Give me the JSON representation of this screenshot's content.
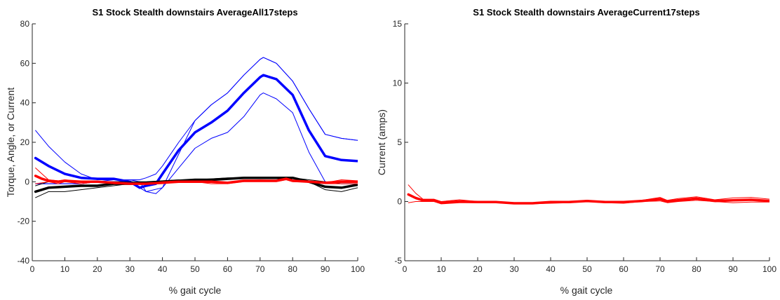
{
  "chart_data": [
    {
      "type": "line",
      "title": "S1 Stock Stealth downstairs  AverageAll17steps",
      "xlabel": "% gait cycle",
      "ylabel": "Torque, Angle, or Current",
      "xlim": [
        0,
        100
      ],
      "ylim": [
        -40,
        80
      ],
      "xticks": [
        0,
        10,
        20,
        30,
        40,
        50,
        60,
        70,
        80,
        90,
        100
      ],
      "yticks": [
        -40,
        -20,
        0,
        20,
        40,
        60,
        80
      ],
      "grid": false,
      "series": [
        {
          "color": "#0000ff",
          "width": 1,
          "x": [
            1,
            5,
            10,
            15,
            20,
            25,
            30,
            33,
            35,
            38,
            40,
            45,
            50,
            55,
            60,
            65,
            70,
            71,
            75,
            80,
            85,
            90,
            95,
            100
          ],
          "y": [
            26,
            18,
            10,
            4,
            1,
            1,
            1,
            0,
            -5,
            -6,
            -3,
            14,
            31,
            39,
            45,
            54,
            62,
            63,
            60,
            51,
            37,
            24,
            22,
            21
          ]
        },
        {
          "color": "#0000ff",
          "width": 1,
          "x": [
            1,
            5,
            10,
            15,
            20,
            25,
            30,
            33,
            35,
            38,
            40,
            45,
            50,
            55,
            60,
            65,
            70,
            71,
            75,
            80,
            85,
            90,
            95,
            100
          ],
          "y": [
            -1,
            -1,
            -1,
            -1,
            0,
            1,
            1,
            1,
            2,
            4,
            8,
            20,
            31,
            39,
            45,
            54,
            62,
            63,
            60,
            51,
            37,
            24,
            22,
            21
          ]
        },
        {
          "color": "#0000ff",
          "width": 1,
          "x": [
            1,
            5,
            10,
            15,
            20,
            25,
            30,
            35,
            40,
            45,
            50,
            55,
            60,
            65,
            70,
            71,
            75,
            80,
            85,
            90,
            95,
            100
          ],
          "y": [
            -1,
            -1,
            -1,
            -1,
            0,
            0,
            0,
            -5,
            -3,
            7,
            17,
            22,
            25,
            33,
            44,
            45,
            42,
            35,
            15,
            0,
            -1,
            -1
          ]
        },
        {
          "color": "#0000ff",
          "width": 3.5,
          "x": [
            1,
            5,
            10,
            15,
            20,
            25,
            30,
            33,
            35,
            38,
            40,
            45,
            50,
            55,
            60,
            65,
            70,
            71,
            75,
            80,
            85,
            90,
            95,
            100
          ],
          "y": [
            12,
            8,
            4,
            2,
            1.5,
            1.5,
            0,
            -3,
            -2,
            -1,
            4,
            16,
            25,
            30,
            36,
            45,
            53,
            54,
            52,
            44,
            26,
            13,
            11,
            10.5
          ]
        },
        {
          "color": "#000000",
          "width": 1,
          "x": [
            1,
            5,
            10,
            15,
            20,
            25,
            30,
            35,
            40,
            45,
            50,
            55,
            60,
            65,
            70,
            75,
            80,
            85,
            90,
            95,
            100
          ],
          "y": [
            -8,
            -5,
            -5,
            -4,
            -3,
            -2,
            -1,
            -1,
            0,
            0.5,
            1,
            1,
            1.5,
            2,
            2,
            2,
            2,
            0,
            -4,
            -5,
            -3
          ]
        },
        {
          "color": "#000000",
          "width": 1,
          "x": [
            1,
            5,
            10,
            15,
            20,
            25,
            30,
            35,
            40,
            45,
            50,
            55,
            60,
            65,
            70,
            75,
            80,
            85,
            90,
            95,
            100
          ],
          "y": [
            -2,
            0,
            0,
            0,
            0,
            0,
            0,
            0,
            0.5,
            1,
            1,
            1.5,
            2,
            2,
            2,
            2,
            2,
            1,
            0,
            -1,
            -1
          ]
        },
        {
          "color": "#000000",
          "width": 3.5,
          "x": [
            1,
            5,
            10,
            15,
            20,
            25,
            30,
            35,
            40,
            45,
            50,
            55,
            60,
            65,
            70,
            75,
            80,
            85,
            90,
            95,
            100
          ],
          "y": [
            -5,
            -3,
            -2.5,
            -2,
            -2,
            -1,
            -1,
            -0.5,
            0,
            0.5,
            1,
            1,
            1.5,
            2,
            2,
            2,
            2,
            0,
            -2.5,
            -3,
            -1.5
          ]
        },
        {
          "color": "#ff0000",
          "width": 1,
          "x": [
            1,
            3,
            5,
            8,
            10,
            15,
            20,
            25,
            30,
            35,
            40,
            45,
            50,
            55,
            60,
            65,
            70,
            75,
            78,
            80,
            85,
            90,
            95,
            100
          ],
          "y": [
            7,
            4,
            1,
            0.5,
            1,
            0,
            0,
            -1,
            -1,
            -1,
            0,
            0.5,
            0,
            0.5,
            -1,
            0.5,
            1,
            0.5,
            2,
            1,
            0,
            -0.5,
            1,
            0.5
          ]
        },
        {
          "color": "#ff0000",
          "width": 1,
          "x": [
            1,
            3,
            5,
            8,
            10,
            15,
            20,
            25,
            30,
            35,
            40,
            45,
            50,
            55,
            60,
            65,
            70,
            75,
            78,
            80,
            85,
            90,
            95,
            100
          ],
          "y": [
            -1,
            -0.5,
            0,
            -1,
            0,
            -1,
            0,
            -1,
            -1,
            -1,
            -1,
            0,
            0,
            -1,
            -1,
            0,
            0,
            0,
            1,
            0,
            0,
            -1,
            -1,
            -1
          ]
        },
        {
          "color": "#ff0000",
          "width": 3.5,
          "x": [
            1,
            3,
            5,
            8,
            10,
            15,
            20,
            25,
            30,
            35,
            40,
            45,
            50,
            55,
            60,
            65,
            70,
            75,
            78,
            80,
            85,
            90,
            95,
            100
          ],
          "y": [
            3,
            1.5,
            0.5,
            0,
            0.5,
            0,
            0,
            -0.5,
            -1,
            -1,
            -0.5,
            0,
            0,
            0,
            -0.5,
            0.5,
            0.5,
            0.5,
            1.5,
            0.5,
            0,
            -0.5,
            0,
            0
          ]
        }
      ]
    },
    {
      "type": "line",
      "title": "S1 Stock Stealth downstairs  AverageCurrent17steps",
      "xlabel": "% gait cycle",
      "ylabel": "Current (amps)",
      "xlim": [
        0,
        100
      ],
      "ylim": [
        -5,
        15
      ],
      "xticks": [
        0,
        10,
        20,
        30,
        40,
        50,
        60,
        70,
        80,
        90,
        100
      ],
      "yticks": [
        -5,
        0,
        5,
        10,
        15
      ],
      "grid": false,
      "series": [
        {
          "color": "#ff0000",
          "width": 1,
          "x": [
            1,
            3,
            5,
            8,
            10,
            15,
            20,
            25,
            30,
            35,
            40,
            45,
            50,
            55,
            60,
            65,
            70,
            72,
            75,
            80,
            85,
            90,
            95,
            100
          ],
          "y": [
            1.4,
            0.7,
            0.2,
            0.2,
            0,
            0.15,
            0,
            0,
            -0.1,
            -0.1,
            0,
            0,
            0.1,
            0,
            0,
            0.1,
            0.35,
            0.1,
            0.25,
            0.4,
            0.15,
            0.3,
            0.35,
            0.2
          ]
        },
        {
          "color": "#ff0000",
          "width": 1,
          "x": [
            1,
            3,
            5,
            8,
            10,
            15,
            20,
            25,
            30,
            35,
            40,
            45,
            50,
            55,
            60,
            65,
            70,
            72,
            75,
            80,
            85,
            90,
            95,
            100
          ],
          "y": [
            -0.1,
            0,
            0,
            0,
            -0.2,
            -0.1,
            -0.1,
            -0.1,
            -0.2,
            -0.2,
            -0.15,
            -0.1,
            0,
            -0.1,
            -0.15,
            0,
            0.05,
            -0.1,
            0,
            0.1,
            0,
            -0.1,
            -0.05,
            -0.05
          ]
        },
        {
          "color": "#ff0000",
          "width": 3.5,
          "x": [
            1,
            3,
            5,
            8,
            10,
            15,
            20,
            25,
            30,
            35,
            40,
            45,
            50,
            55,
            60,
            65,
            70,
            72,
            75,
            80,
            85,
            90,
            95,
            100
          ],
          "y": [
            0.6,
            0.3,
            0.1,
            0.1,
            -0.1,
            0,
            -0.05,
            -0.05,
            -0.15,
            -0.15,
            -0.05,
            -0.05,
            0.05,
            -0.05,
            -0.05,
            0.05,
            0.2,
            0,
            0.1,
            0.25,
            0.05,
            0.1,
            0.15,
            0.05
          ]
        }
      ]
    }
  ]
}
